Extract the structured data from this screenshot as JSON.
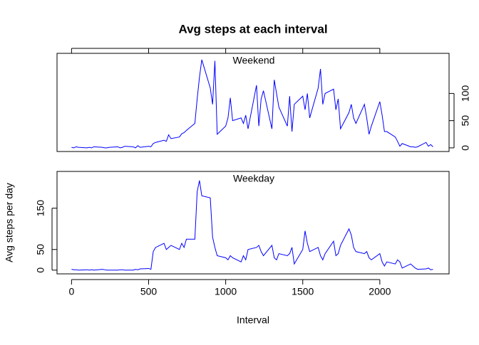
{
  "chart_data": [
    {
      "type": "line",
      "title": "Avg steps at each interval",
      "panel_label": "Weekend",
      "color": "#0000ff",
      "x": [
        0,
        15,
        30,
        45,
        100,
        115,
        130,
        145,
        200,
        215,
        230,
        245,
        300,
        315,
        330,
        345,
        400,
        415,
        430,
        445,
        500,
        515,
        530,
        545,
        600,
        615,
        630,
        645,
        700,
        715,
        730,
        745,
        800,
        815,
        830,
        845,
        900,
        915,
        930,
        945,
        1000,
        1015,
        1030,
        1045,
        1100,
        1115,
        1130,
        1145,
        1200,
        1215,
        1230,
        1245,
        1300,
        1315,
        1330,
        1345,
        1400,
        1415,
        1430,
        1445,
        1500,
        1515,
        1530,
        1545,
        1600,
        1615,
        1630,
        1645,
        1700,
        1715,
        1730,
        1745,
        1800,
        1815,
        1830,
        1845,
        1900,
        1915,
        1930,
        1945,
        2000,
        2015,
        2030,
        2045,
        2100,
        2115,
        2130,
        2145,
        2200,
        2215,
        2230,
        2245,
        2300,
        2315,
        2330,
        2345
      ],
      "values": [
        1,
        0,
        2,
        1,
        0,
        1,
        0,
        2,
        1,
        0,
        0,
        1,
        2,
        0,
        1,
        3,
        2,
        0,
        4,
        1,
        3,
        2,
        8,
        10,
        14,
        12,
        24,
        17,
        20,
        26,
        28,
        32,
        45,
        90,
        130,
        162,
        110,
        80,
        160,
        25,
        40,
        55,
        92,
        50,
        55,
        45,
        60,
        35,
        115,
        40,
        90,
        105,
        35,
        125,
        100,
        75,
        40,
        95,
        30,
        80,
        95,
        70,
        100,
        55,
        110,
        145,
        80,
        100,
        108,
        70,
        90,
        35,
        65,
        80,
        55,
        45,
        80,
        55,
        25,
        40,
        85,
        60,
        30,
        30,
        20,
        12,
        3,
        8,
        2,
        2,
        1,
        2,
        10,
        3,
        6,
        2
      ],
      "xlim": [
        -94.2,
        2449.2
      ],
      "ylim": [
        -6.7,
        173.7
      ],
      "yticks": [
        0,
        50,
        100
      ]
    },
    {
      "type": "line",
      "panel_label": "Weekday",
      "color": "#0000ff",
      "xlabel": "Interval",
      "ylabel": "Avg steps per day",
      "x": [
        0,
        15,
        30,
        45,
        100,
        115,
        130,
        145,
        200,
        215,
        230,
        245,
        300,
        315,
        330,
        345,
        400,
        415,
        430,
        445,
        500,
        515,
        530,
        545,
        600,
        615,
        630,
        645,
        700,
        715,
        730,
        745,
        800,
        815,
        830,
        845,
        900,
        915,
        930,
        945,
        1000,
        1015,
        1030,
        1045,
        1100,
        1115,
        1130,
        1145,
        1200,
        1215,
        1230,
        1245,
        1300,
        1315,
        1330,
        1345,
        1400,
        1415,
        1430,
        1445,
        1500,
        1515,
        1530,
        1545,
        1600,
        1615,
        1630,
        1645,
        1700,
        1715,
        1730,
        1745,
        1800,
        1815,
        1830,
        1845,
        1900,
        1915,
        1930,
        1945,
        2000,
        2015,
        2030,
        2045,
        2100,
        2115,
        2130,
        2145,
        2200,
        2215,
        2230,
        2245,
        2300,
        2315,
        2330,
        2345
      ],
      "values": [
        2,
        1,
        1,
        0,
        1,
        0,
        1,
        0,
        2,
        1,
        0,
        0,
        0,
        1,
        1,
        0,
        0,
        2,
        1,
        3,
        4,
        2,
        45,
        55,
        65,
        50,
        55,
        60,
        50,
        65,
        55,
        75,
        75,
        190,
        217,
        180,
        175,
        80,
        55,
        35,
        30,
        25,
        35,
        30,
        20,
        35,
        25,
        50,
        55,
        60,
        45,
        35,
        60,
        30,
        25,
        40,
        35,
        40,
        55,
        15,
        50,
        95,
        65,
        45,
        55,
        35,
        25,
        40,
        70,
        35,
        40,
        60,
        100,
        85,
        55,
        45,
        40,
        45,
        30,
        25,
        40,
        20,
        10,
        20,
        15,
        25,
        20,
        5,
        15,
        10,
        5,
        2,
        3,
        5,
        1,
        2
      ],
      "xlim": [
        -94.2,
        2449.2
      ],
      "ylim": [
        -9,
        239
      ],
      "yticks": [
        0,
        50,
        150
      ],
      "xticks": [
        0,
        500,
        1000,
        1500,
        2000
      ]
    }
  ]
}
